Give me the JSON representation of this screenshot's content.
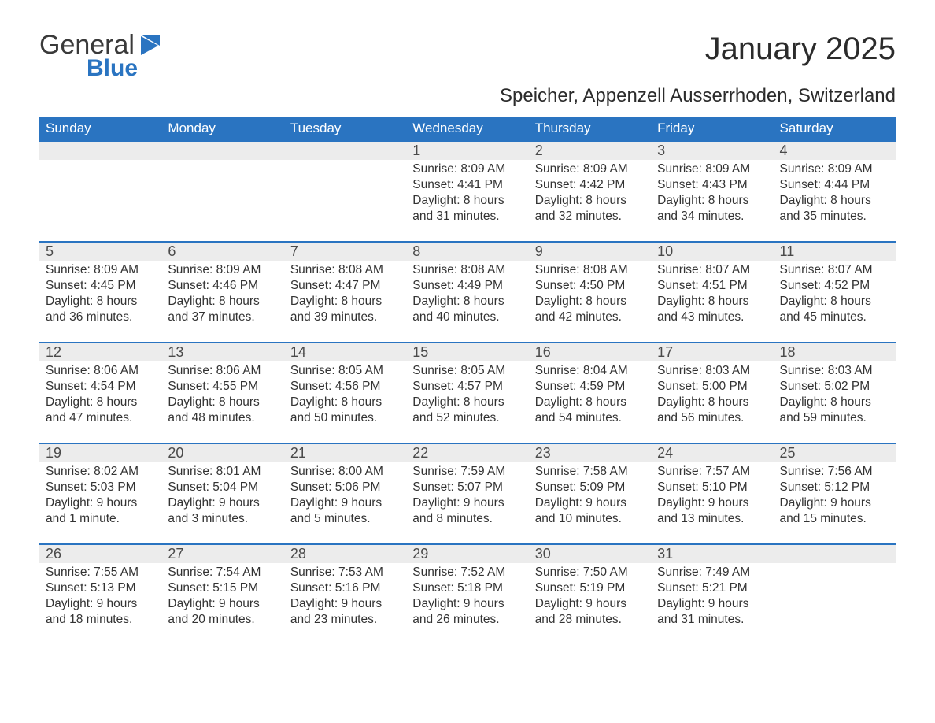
{
  "brand": {
    "text1": "General",
    "text2": "Blue",
    "icon_color": "#2a74c1"
  },
  "title": "January 2025",
  "location": "Speicher, Appenzell Ausserrhoden, Switzerland",
  "colors": {
    "header_bg": "#2a74c1",
    "header_fg": "#ffffff",
    "daynum_bg": "#ececec",
    "row_border": "#2a74c1",
    "body_bg": "#ffffff",
    "text": "#333333"
  },
  "typography": {
    "title_fontsize": 40,
    "location_fontsize": 24,
    "header_fontsize": 17,
    "daynum_fontsize": 18,
    "body_fontsize": 15.5
  },
  "weekdays": [
    "Sunday",
    "Monday",
    "Tuesday",
    "Wednesday",
    "Thursday",
    "Friday",
    "Saturday"
  ],
  "weeks": [
    [
      null,
      null,
      null,
      {
        "n": "1",
        "sunrise": "Sunrise: 8:09 AM",
        "sunset": "Sunset: 4:41 PM",
        "daylight": "Daylight: 8 hours and 31 minutes."
      },
      {
        "n": "2",
        "sunrise": "Sunrise: 8:09 AM",
        "sunset": "Sunset: 4:42 PM",
        "daylight": "Daylight: 8 hours and 32 minutes."
      },
      {
        "n": "3",
        "sunrise": "Sunrise: 8:09 AM",
        "sunset": "Sunset: 4:43 PM",
        "daylight": "Daylight: 8 hours and 34 minutes."
      },
      {
        "n": "4",
        "sunrise": "Sunrise: 8:09 AM",
        "sunset": "Sunset: 4:44 PM",
        "daylight": "Daylight: 8 hours and 35 minutes."
      }
    ],
    [
      {
        "n": "5",
        "sunrise": "Sunrise: 8:09 AM",
        "sunset": "Sunset: 4:45 PM",
        "daylight": "Daylight: 8 hours and 36 minutes."
      },
      {
        "n": "6",
        "sunrise": "Sunrise: 8:09 AM",
        "sunset": "Sunset: 4:46 PM",
        "daylight": "Daylight: 8 hours and 37 minutes."
      },
      {
        "n": "7",
        "sunrise": "Sunrise: 8:08 AM",
        "sunset": "Sunset: 4:47 PM",
        "daylight": "Daylight: 8 hours and 39 minutes."
      },
      {
        "n": "8",
        "sunrise": "Sunrise: 8:08 AM",
        "sunset": "Sunset: 4:49 PM",
        "daylight": "Daylight: 8 hours and 40 minutes."
      },
      {
        "n": "9",
        "sunrise": "Sunrise: 8:08 AM",
        "sunset": "Sunset: 4:50 PM",
        "daylight": "Daylight: 8 hours and 42 minutes."
      },
      {
        "n": "10",
        "sunrise": "Sunrise: 8:07 AM",
        "sunset": "Sunset: 4:51 PM",
        "daylight": "Daylight: 8 hours and 43 minutes."
      },
      {
        "n": "11",
        "sunrise": "Sunrise: 8:07 AM",
        "sunset": "Sunset: 4:52 PM",
        "daylight": "Daylight: 8 hours and 45 minutes."
      }
    ],
    [
      {
        "n": "12",
        "sunrise": "Sunrise: 8:06 AM",
        "sunset": "Sunset: 4:54 PM",
        "daylight": "Daylight: 8 hours and 47 minutes."
      },
      {
        "n": "13",
        "sunrise": "Sunrise: 8:06 AM",
        "sunset": "Sunset: 4:55 PM",
        "daylight": "Daylight: 8 hours and 48 minutes."
      },
      {
        "n": "14",
        "sunrise": "Sunrise: 8:05 AM",
        "sunset": "Sunset: 4:56 PM",
        "daylight": "Daylight: 8 hours and 50 minutes."
      },
      {
        "n": "15",
        "sunrise": "Sunrise: 8:05 AM",
        "sunset": "Sunset: 4:57 PM",
        "daylight": "Daylight: 8 hours and 52 minutes."
      },
      {
        "n": "16",
        "sunrise": "Sunrise: 8:04 AM",
        "sunset": "Sunset: 4:59 PM",
        "daylight": "Daylight: 8 hours and 54 minutes."
      },
      {
        "n": "17",
        "sunrise": "Sunrise: 8:03 AM",
        "sunset": "Sunset: 5:00 PM",
        "daylight": "Daylight: 8 hours and 56 minutes."
      },
      {
        "n": "18",
        "sunrise": "Sunrise: 8:03 AM",
        "sunset": "Sunset: 5:02 PM",
        "daylight": "Daylight: 8 hours and 59 minutes."
      }
    ],
    [
      {
        "n": "19",
        "sunrise": "Sunrise: 8:02 AM",
        "sunset": "Sunset: 5:03 PM",
        "daylight": "Daylight: 9 hours and 1 minute."
      },
      {
        "n": "20",
        "sunrise": "Sunrise: 8:01 AM",
        "sunset": "Sunset: 5:04 PM",
        "daylight": "Daylight: 9 hours and 3 minutes."
      },
      {
        "n": "21",
        "sunrise": "Sunrise: 8:00 AM",
        "sunset": "Sunset: 5:06 PM",
        "daylight": "Daylight: 9 hours and 5 minutes."
      },
      {
        "n": "22",
        "sunrise": "Sunrise: 7:59 AM",
        "sunset": "Sunset: 5:07 PM",
        "daylight": "Daylight: 9 hours and 8 minutes."
      },
      {
        "n": "23",
        "sunrise": "Sunrise: 7:58 AM",
        "sunset": "Sunset: 5:09 PM",
        "daylight": "Daylight: 9 hours and 10 minutes."
      },
      {
        "n": "24",
        "sunrise": "Sunrise: 7:57 AM",
        "sunset": "Sunset: 5:10 PM",
        "daylight": "Daylight: 9 hours and 13 minutes."
      },
      {
        "n": "25",
        "sunrise": "Sunrise: 7:56 AM",
        "sunset": "Sunset: 5:12 PM",
        "daylight": "Daylight: 9 hours and 15 minutes."
      }
    ],
    [
      {
        "n": "26",
        "sunrise": "Sunrise: 7:55 AM",
        "sunset": "Sunset: 5:13 PM",
        "daylight": "Daylight: 9 hours and 18 minutes."
      },
      {
        "n": "27",
        "sunrise": "Sunrise: 7:54 AM",
        "sunset": "Sunset: 5:15 PM",
        "daylight": "Daylight: 9 hours and 20 minutes."
      },
      {
        "n": "28",
        "sunrise": "Sunrise: 7:53 AM",
        "sunset": "Sunset: 5:16 PM",
        "daylight": "Daylight: 9 hours and 23 minutes."
      },
      {
        "n": "29",
        "sunrise": "Sunrise: 7:52 AM",
        "sunset": "Sunset: 5:18 PM",
        "daylight": "Daylight: 9 hours and 26 minutes."
      },
      {
        "n": "30",
        "sunrise": "Sunrise: 7:50 AM",
        "sunset": "Sunset: 5:19 PM",
        "daylight": "Daylight: 9 hours and 28 minutes."
      },
      {
        "n": "31",
        "sunrise": "Sunrise: 7:49 AM",
        "sunset": "Sunset: 5:21 PM",
        "daylight": "Daylight: 9 hours and 31 minutes."
      },
      null
    ]
  ]
}
